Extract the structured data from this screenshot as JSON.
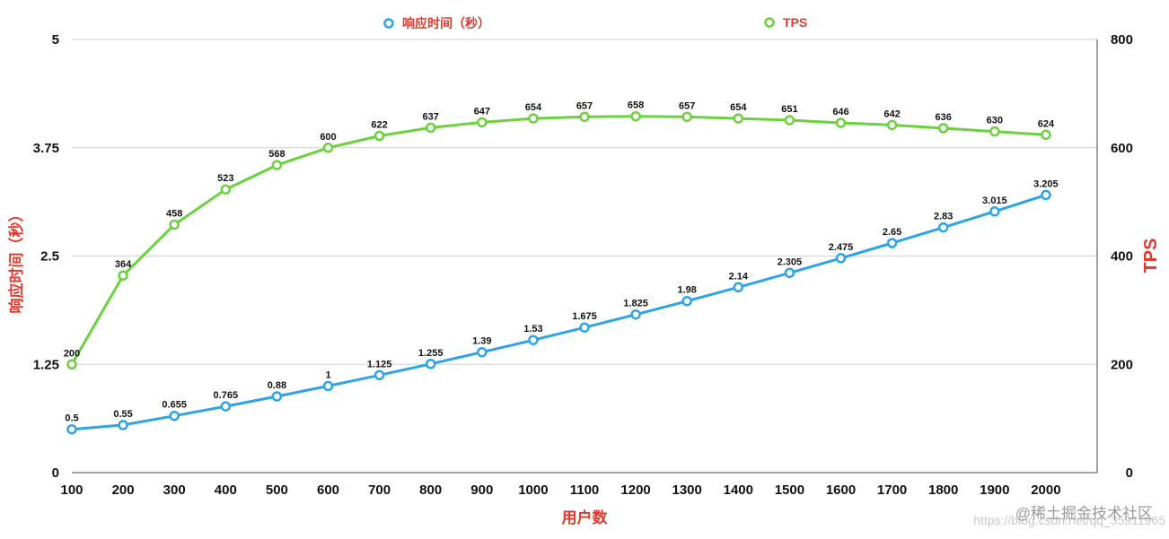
{
  "chart_data": {
    "type": "line",
    "title": "",
    "xlabel": "用户数",
    "ylabel_left": "响应时间（秒）",
    "ylabel_right": "TPS",
    "x": [
      100,
      200,
      300,
      400,
      500,
      600,
      700,
      800,
      900,
      1000,
      1100,
      1200,
      1300,
      1400,
      1500,
      1600,
      1700,
      1800,
      1900,
      2000
    ],
    "ylim_left": [
      0,
      5
    ],
    "ylim_right": [
      0,
      800
    ],
    "yticks_left": [
      "0",
      "1.25",
      "2.5",
      "3.75",
      "5"
    ],
    "yticks_right": [
      "0",
      "200",
      "400",
      "600",
      "800"
    ],
    "grid": true,
    "legend_position": "top-center",
    "series": [
      {
        "name": "响应时间（秒）",
        "axis": "left",
        "color": "#2ea3e6",
        "values": [
          0.5,
          0.55,
          0.655,
          0.765,
          0.88,
          1,
          1.125,
          1.255,
          1.39,
          1.53,
          1.675,
          1.825,
          1.98,
          2.14,
          2.305,
          2.475,
          2.65,
          2.83,
          3.015,
          3.205
        ],
        "labels": [
          "0.5",
          "0.55",
          "0.655",
          "0.765",
          "0.88",
          "1",
          "1.125",
          "1.255",
          "1.39",
          "1.53",
          "1.675",
          "1.825",
          "1.98",
          "2.14",
          "2.305",
          "2.475",
          "2.65",
          "2.83",
          "3.015",
          "3.205"
        ]
      },
      {
        "name": "TPS",
        "axis": "right",
        "color": "#6bd13e",
        "values": [
          200,
          364,
          458,
          523,
          568,
          600,
          622,
          637,
          647,
          654,
          657,
          658,
          657,
          654,
          651,
          646,
          642,
          636,
          630,
          624
        ],
        "labels": [
          "200",
          "364",
          "458",
          "523",
          "568",
          "600",
          "622",
          "637",
          "647",
          "654",
          "657",
          "658",
          "657",
          "654",
          "651",
          "646",
          "642",
          "636",
          "630",
          "624"
        ]
      }
    ]
  },
  "colors": {
    "title_red": "#e0392b",
    "grid": "#cfcfcf",
    "axis": "#444444"
  },
  "watermark": {
    "text": "@稀土掘金技术社区",
    "faint": "https://blog.csdn.net/qq_35911965"
  }
}
